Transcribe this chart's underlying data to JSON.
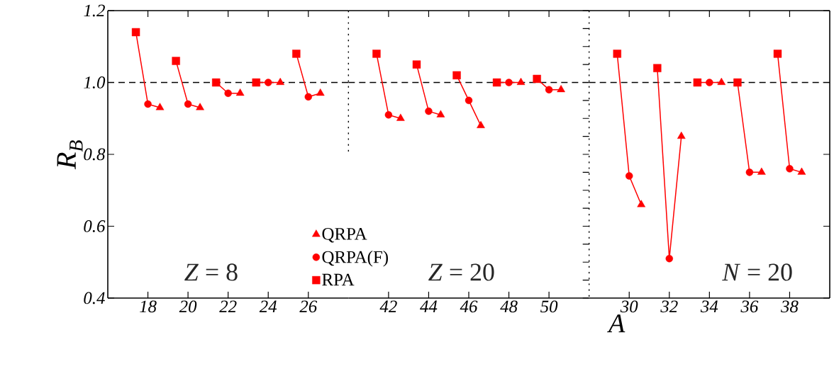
{
  "chart_data": [
    {
      "type": "scatter",
      "ylabel": "R$_{B}$",
      "xlim": [
        16,
        28
      ],
      "xticks": [
        18,
        20,
        22,
        24,
        26
      ],
      "ylim": [
        0.4,
        1.2
      ],
      "yticks": [
        {
          "value": 0.4,
          "label": "0.4"
        },
        {
          "value": 0.6,
          "label": "0.6"
        },
        {
          "value": 0.8,
          "label": "0.8"
        },
        {
          "value": 1.0,
          "label": "1.0"
        },
        {
          "value": 1.2,
          "label": "1.2"
        }
      ],
      "series": [
        {
          "name": "RPA",
          "color": "#ff0000",
          "marker": "square",
          "x": [
            17.4,
            19.4,
            21.4,
            23.4,
            25.4
          ],
          "values": [
            1.14,
            1.06,
            1.0,
            1.0,
            1.08
          ]
        },
        {
          "name": "QRPA(F)",
          "color": "#ff0000",
          "marker": "circle",
          "x": [
            18,
            20,
            22,
            24,
            26
          ],
          "values": [
            0.94,
            0.94,
            0.97,
            1.0,
            0.96
          ]
        },
        {
          "name": "QRPA",
          "color": "#ff0000",
          "marker": "triangle",
          "x": [
            18.6,
            20.6,
            22.6,
            24.6,
            26.6
          ],
          "values": [
            0.93,
            0.93,
            0.97,
            1.0,
            0.97
          ]
        },
        {
          "type": "line",
          "color": "#ff0000",
          "x": [
            17.4,
            18,
            18.6
          ],
          "values": [
            1.14,
            0.94,
            0.93
          ]
        },
        {
          "type": "line",
          "color": "#ff0000",
          "x": [
            19.4,
            20,
            20.6
          ],
          "values": [
            1.06,
            0.94,
            0.93
          ]
        },
        {
          "type": "line",
          "color": "#ff0000",
          "x": [
            21.4,
            22,
            22.6
          ],
          "values": [
            1.0,
            0.97,
            0.97
          ]
        },
        {
          "type": "line",
          "color": "#ff0000",
          "x": [
            23.4,
            24,
            24.6
          ],
          "values": [
            1.0,
            1.0,
            1.0
          ]
        },
        {
          "type": "line",
          "color": "#ff0000",
          "x": [
            25.4,
            26,
            26.6
          ],
          "values": [
            1.08,
            0.96,
            0.97
          ]
        }
      ],
      "ref_lines": [
        {
          "axis": "y",
          "value": 1.0,
          "line_style": "dashed",
          "color": "#000000"
        }
      ],
      "annotations": [
        "*Z* = 8"
      ],
      "legend": "bottom right",
      "line_style": "solid"
    },
    {
      "type": "scatter",
      "xlim": [
        40,
        52
      ],
      "xticks": [
        42,
        44,
        46,
        48,
        50
      ],
      "ylim": [
        0.4,
        1.2
      ],
      "tick_labels": "x",
      "series": [
        {
          "color": "#ff0000",
          "marker": "square",
          "x": [
            41.4,
            43.4,
            45.4,
            47.4,
            49.4
          ],
          "values": [
            1.08,
            1.05,
            1.02,
            1.0,
            1.01
          ]
        },
        {
          "color": "#ff0000",
          "marker": "circle",
          "x": [
            42,
            44,
            46,
            48,
            50
          ],
          "values": [
            0.91,
            0.92,
            0.95,
            1.0,
            0.98
          ]
        },
        {
          "color": "#ff0000",
          "marker": "triangle",
          "x": [
            42.6,
            44.6,
            46.6,
            48.6,
            50.6
          ],
          "values": [
            0.9,
            0.91,
            0.88,
            1.0,
            0.98
          ]
        },
        {
          "type": "line",
          "color": "#ff0000",
          "x": [
            41.4,
            42,
            42.6
          ],
          "values": [
            1.08,
            0.91,
            0.9
          ]
        },
        {
          "type": "line",
          "color": "#ff0000",
          "x": [
            43.4,
            44,
            44.6
          ],
          "values": [
            1.05,
            0.92,
            0.91
          ]
        },
        {
          "type": "line",
          "color": "#ff0000",
          "x": [
            45.4,
            46,
            46.6
          ],
          "values": [
            1.02,
            0.95,
            0.88
          ]
        },
        {
          "type": "line",
          "color": "#ff0000",
          "x": [
            47.4,
            48,
            48.6
          ],
          "values": [
            1.0,
            1.0,
            1.0
          ]
        },
        {
          "type": "line",
          "color": "#ff0000",
          "x": [
            49.4,
            50,
            50.6
          ],
          "values": [
            1.01,
            0.98,
            0.98
          ]
        }
      ],
      "ref_lines": [
        {
          "axis": "y",
          "value": 1.0,
          "line_style": "dashed",
          "color": "#000000"
        }
      ],
      "annotations": [
        "*Z* = 20"
      ],
      "line_style": "solid"
    },
    {
      "type": "scatter",
      "xlabel": "A",
      "xlim": [
        28,
        40
      ],
      "xticks": [
        30,
        32,
        34,
        36,
        38
      ],
      "ylim": [
        0.4,
        1.2
      ],
      "yticks": [
        0.4,
        0.6,
        0.8,
        1.0,
        1.2
      ],
      "tick_labels": "x",
      "series": [
        {
          "color": "#ff0000",
          "marker": "square",
          "x": [
            29.4,
            31.4,
            33.4,
            35.4,
            37.4
          ],
          "values": [
            1.08,
            1.04,
            1.0,
            1.0,
            1.08
          ]
        },
        {
          "color": "#ff0000",
          "marker": "circle",
          "x": [
            30,
            32,
            34,
            36,
            38
          ],
          "values": [
            0.74,
            0.51,
            1.0,
            0.75,
            0.76
          ]
        },
        {
          "color": "#ff0000",
          "marker": "triangle",
          "x": [
            30.6,
            32.6,
            34.6,
            36.6,
            38.6
          ],
          "values": [
            0.66,
            0.85,
            1.0,
            0.75,
            0.75
          ]
        },
        {
          "type": "line",
          "color": "#ff0000",
          "x": [
            29.4,
            30,
            30.6
          ],
          "values": [
            1.08,
            0.74,
            0.66
          ]
        },
        {
          "type": "line",
          "color": "#ff0000",
          "x": [
            31.4,
            32,
            32.6
          ],
          "values": [
            1.04,
            0.51,
            0.85
          ]
        },
        {
          "type": "line",
          "color": "#ff0000",
          "x": [
            33.4,
            34,
            34.6
          ],
          "values": [
            1.0,
            1.0,
            1.0
          ]
        },
        {
          "type": "line",
          "color": "#ff0000",
          "x": [
            35.4,
            36,
            36.6
          ],
          "values": [
            1.0,
            0.75,
            0.75
          ]
        },
        {
          "type": "line",
          "color": "#ff0000",
          "x": [
            37.4,
            38,
            38.6
          ],
          "values": [
            1.08,
            0.76,
            0.75
          ]
        }
      ],
      "ref_lines": [
        {
          "axis": "y",
          "value": 1.0,
          "line_style": "dashed",
          "color": "#000000"
        }
      ],
      "annotations": [
        "*N* = 20"
      ],
      "line_style": "solid"
    }
  ]
}
